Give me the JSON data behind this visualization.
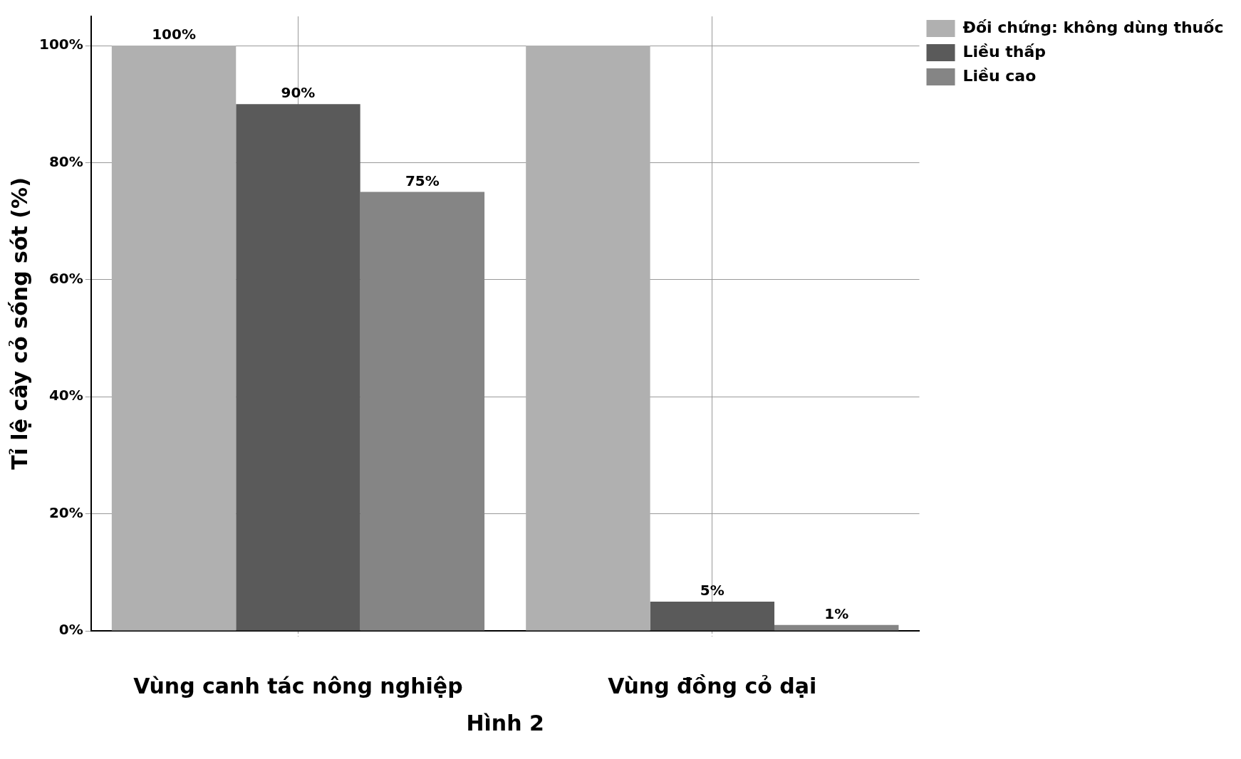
{
  "chart_data": {
    "type": "bar",
    "ylabel": "Tỉ lệ cây cỏ sống sót (%)",
    "categories": [
      "Vùng canh tác nông nghiệp",
      "Vùng đồng cỏ dại"
    ],
    "series": [
      {
        "name": "Đối chứng: không dùng thuốc",
        "color": "#b0b0b0",
        "values": [
          100,
          100
        ],
        "value_labels": [
          "100%",
          null
        ]
      },
      {
        "name": "Liều thấp",
        "color": "#5a5a5a",
        "values": [
          90,
          5
        ],
        "value_labels": [
          "90%",
          "5%"
        ]
      },
      {
        "name": "Liều cao",
        "color": "#858585",
        "values": [
          75,
          1
        ],
        "value_labels": [
          "75%",
          "1%"
        ]
      }
    ],
    "ylim": [
      0,
      105
    ],
    "yticks": [
      {
        "value": 0,
        "label": "0%"
      },
      {
        "value": 20,
        "label": "20%"
      },
      {
        "value": 40,
        "label": "40%"
      },
      {
        "value": 60,
        "label": "60%"
      },
      {
        "value": 80,
        "label": "80%"
      },
      {
        "value": 100,
        "label": "100%"
      }
    ],
    "grid": true,
    "legend": "right",
    "annotations": [
      "Hình 2"
    ]
  }
}
